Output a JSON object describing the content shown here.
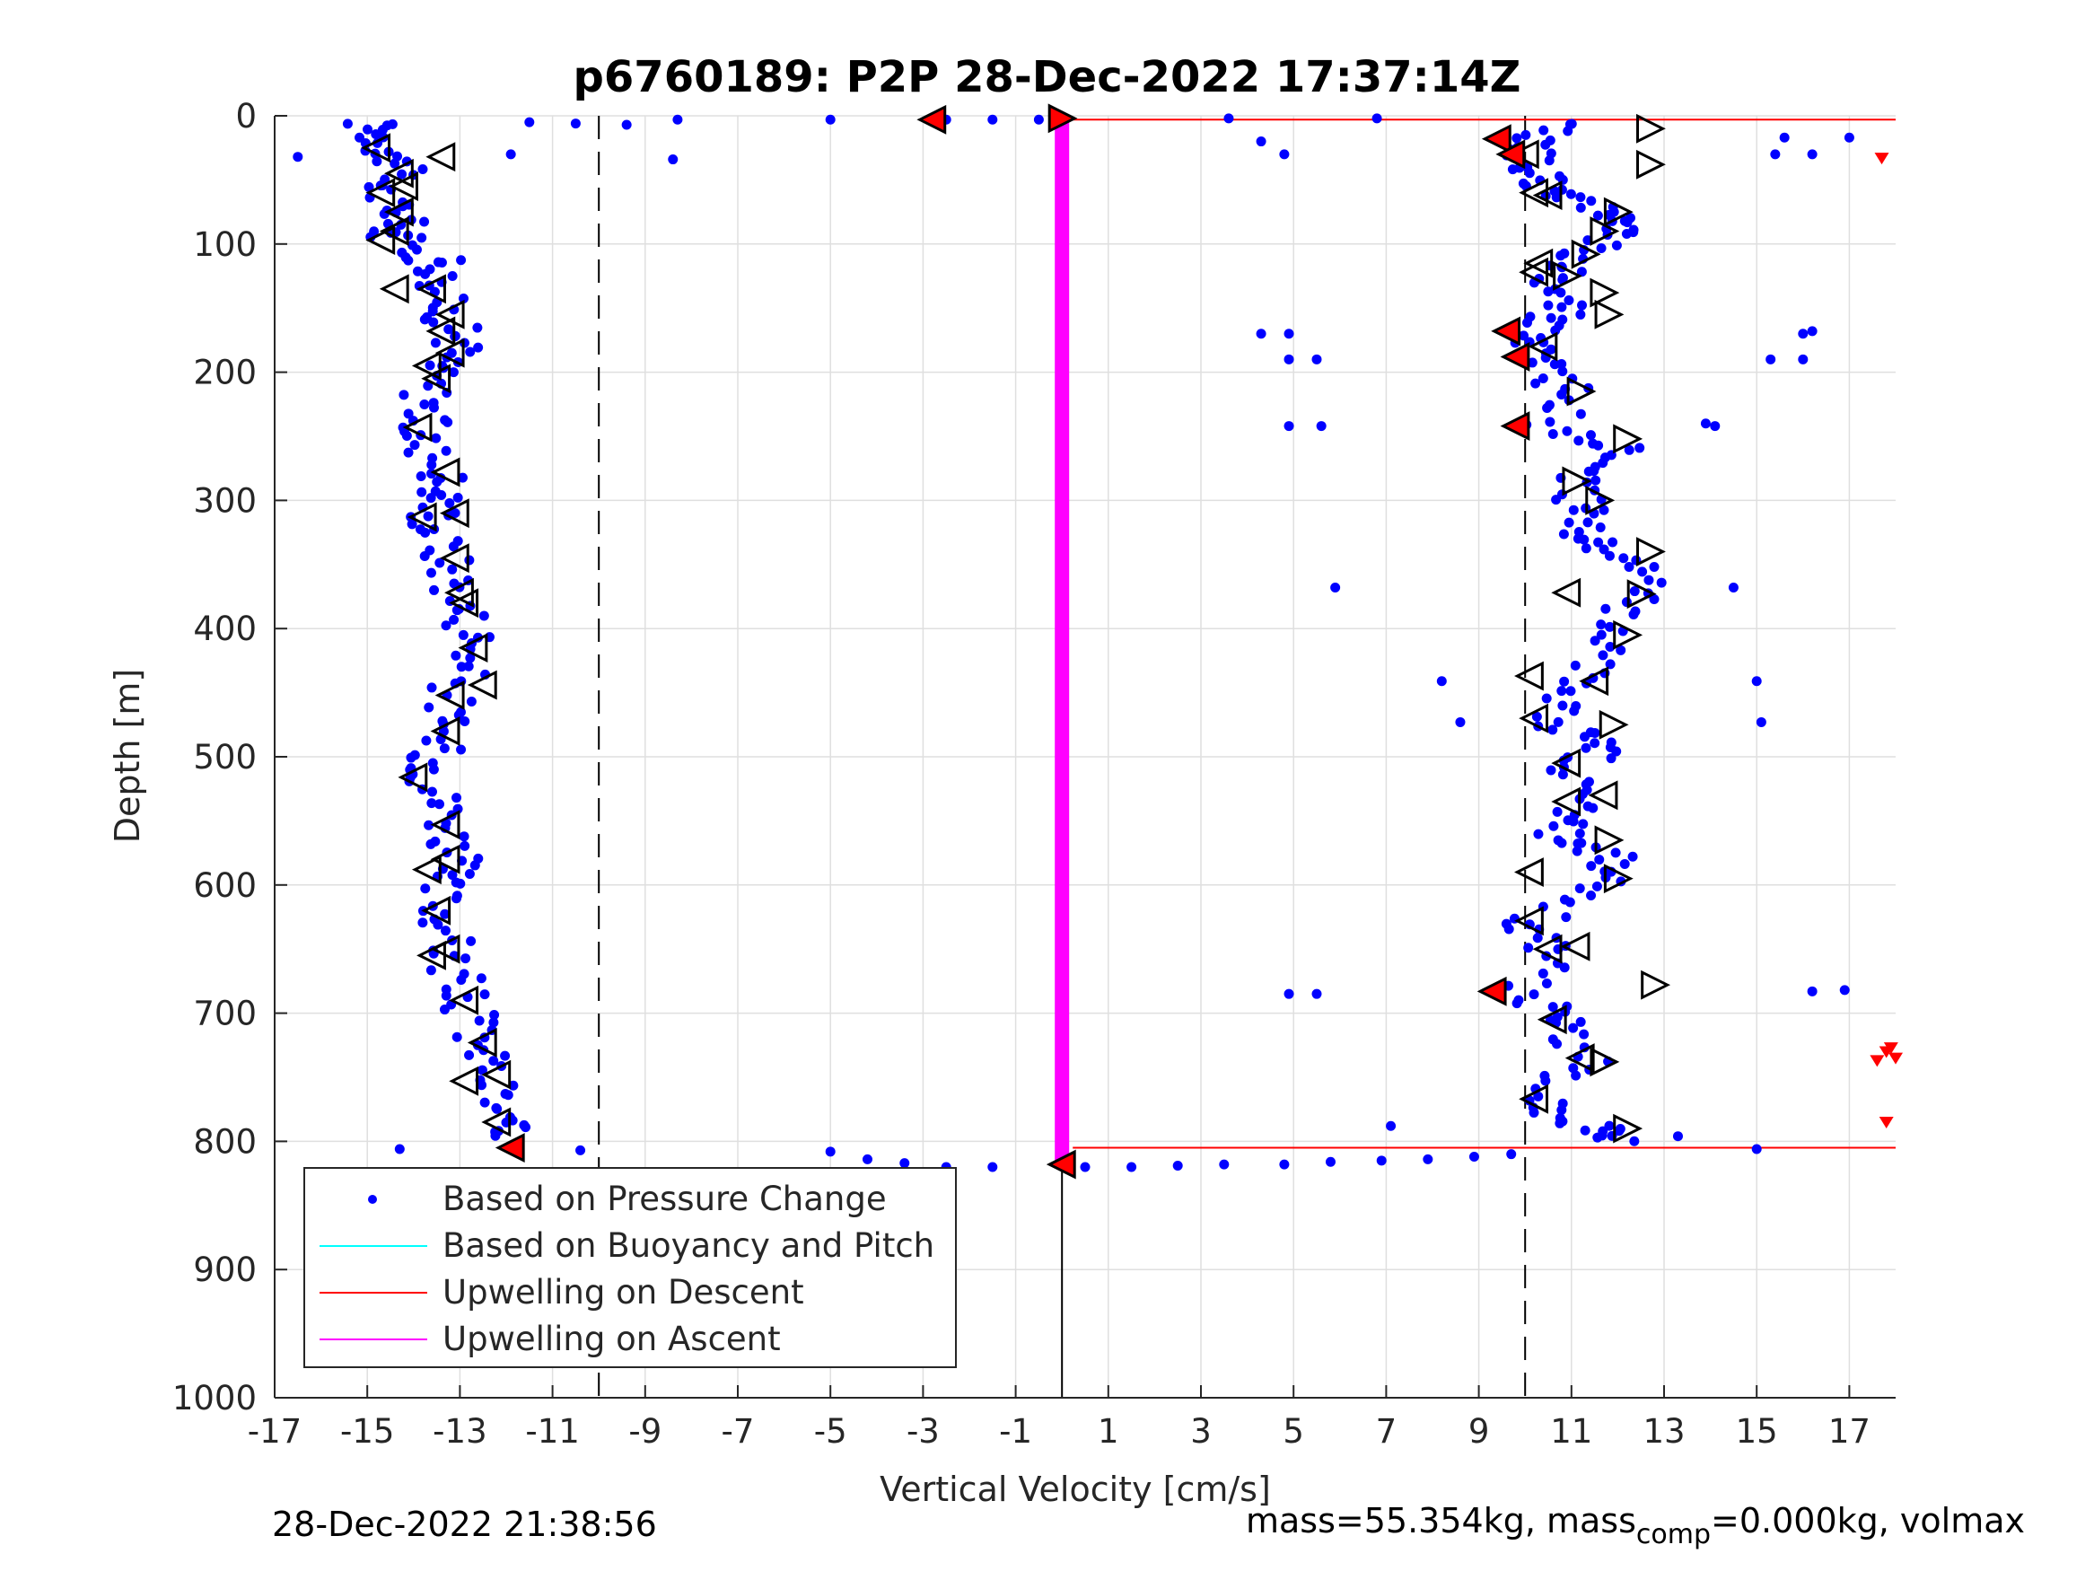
{
  "title": "p6760189: P2P 28-Dec-2022 17:37:14Z",
  "footer": {
    "timestamp": "28-Dec-2022 21:38:56",
    "mass_text": "mass=55.354kg, mass",
    "mass_sub": "comp",
    "mass_tail": "=0.000kg, volmax"
  },
  "legend": [
    {
      "label": "Based on Pressure Change",
      "color": "#0000ff",
      "style": "dot"
    },
    {
      "label": "Based on Buoyancy and Pitch",
      "color": "#00ffff",
      "style": "line"
    },
    {
      "label": "Upwelling on Descent",
      "color": "#ff0000",
      "style": "line"
    },
    {
      "label": "Upwelling on Ascent",
      "color": "#ff00ff",
      "style": "line"
    }
  ],
  "chart_data": {
    "type": "scatter",
    "title": "p6760189: P2P 28-Dec-2022 17:37:14Z",
    "xlabel": "Vertical Velocity [cm/s]",
    "ylabel": "Depth [m]",
    "xlim": [
      -17,
      18
    ],
    "ylim": [
      0,
      1000
    ],
    "y_reversed": true,
    "grid": true,
    "legend_position": "bottom-left",
    "xticks": [
      -17,
      -15,
      -13,
      -11,
      -9,
      -7,
      -5,
      -3,
      -1,
      1,
      3,
      5,
      7,
      9,
      11,
      13,
      15,
      17
    ],
    "yticks": [
      0,
      100,
      200,
      300,
      400,
      500,
      600,
      700,
      800,
      900,
      1000
    ],
    "reference_lines": {
      "dashed_x": [
        -10,
        10
      ],
      "solid_x_descent_limit": 0,
      "upwelling_descent_y": [
        3,
        805
      ],
      "upwelling_ascent_x": 0
    },
    "descent_profile": [
      {
        "x": -15.0,
        "y": 5
      },
      {
        "x": -14.6,
        "y": 20
      },
      {
        "x": -14.3,
        "y": 40
      },
      {
        "x": -14.7,
        "y": 60
      },
      {
        "x": -14.2,
        "y": 80
      },
      {
        "x": -14.5,
        "y": 95
      },
      {
        "x": -13.3,
        "y": 115
      },
      {
        "x": -13.5,
        "y": 135
      },
      {
        "x": -13.2,
        "y": 160
      },
      {
        "x": -13.0,
        "y": 180
      },
      {
        "x": -13.6,
        "y": 200
      },
      {
        "x": -13.7,
        "y": 230
      },
      {
        "x": -13.9,
        "y": 250
      },
      {
        "x": -13.3,
        "y": 280
      },
      {
        "x": -13.4,
        "y": 300
      },
      {
        "x": -13.6,
        "y": 320
      },
      {
        "x": -13.2,
        "y": 350
      },
      {
        "x": -13.0,
        "y": 380
      },
      {
        "x": -12.6,
        "y": 410
      },
      {
        "x": -13.0,
        "y": 440
      },
      {
        "x": -13.4,
        "y": 470
      },
      {
        "x": -13.5,
        "y": 500
      },
      {
        "x": -13.6,
        "y": 520
      },
      {
        "x": -13.2,
        "y": 550
      },
      {
        "x": -13.1,
        "y": 580
      },
      {
        "x": -13.5,
        "y": 600
      },
      {
        "x": -13.3,
        "y": 630
      },
      {
        "x": -13.2,
        "y": 660
      },
      {
        "x": -12.9,
        "y": 690
      },
      {
        "x": -12.6,
        "y": 720
      },
      {
        "x": -12.3,
        "y": 750
      },
      {
        "x": -12.2,
        "y": 780
      },
      {
        "x": -12.0,
        "y": 800
      }
    ],
    "ascent_profile": [
      {
        "x": 10.6,
        "y": 5
      },
      {
        "x": 10.0,
        "y": 25
      },
      {
        "x": 10.3,
        "y": 45
      },
      {
        "x": 10.6,
        "y": 60
      },
      {
        "x": 11.8,
        "y": 75
      },
      {
        "x": 12.0,
        "y": 90
      },
      {
        "x": 11.0,
        "y": 110
      },
      {
        "x": 10.5,
        "y": 130
      },
      {
        "x": 10.8,
        "y": 150
      },
      {
        "x": 10.2,
        "y": 170
      },
      {
        "x": 10.0,
        "y": 190
      },
      {
        "x": 11.0,
        "y": 215
      },
      {
        "x": 10.5,
        "y": 245
      },
      {
        "x": 12.0,
        "y": 260
      },
      {
        "x": 11.0,
        "y": 285
      },
      {
        "x": 11.4,
        "y": 310
      },
      {
        "x": 11.2,
        "y": 330
      },
      {
        "x": 12.5,
        "y": 350
      },
      {
        "x": 12.3,
        "y": 380
      },
      {
        "x": 12.0,
        "y": 410
      },
      {
        "x": 11.4,
        "y": 440
      },
      {
        "x": 10.4,
        "y": 470
      },
      {
        "x": 11.8,
        "y": 490
      },
      {
        "x": 10.9,
        "y": 510
      },
      {
        "x": 11.2,
        "y": 540
      },
      {
        "x": 10.8,
        "y": 560
      },
      {
        "x": 11.8,
        "y": 580
      },
      {
        "x": 11.9,
        "y": 600
      },
      {
        "x": 10.0,
        "y": 630
      },
      {
        "x": 10.5,
        "y": 650
      },
      {
        "x": 10.0,
        "y": 690
      },
      {
        "x": 11.0,
        "y": 710
      },
      {
        "x": 11.3,
        "y": 740
      },
      {
        "x": 10.3,
        "y": 770
      },
      {
        "x": 11.6,
        "y": 790
      },
      {
        "x": 12.0,
        "y": 800
      }
    ],
    "near_surface_points": [
      {
        "x": -11.5,
        "y": 5
      },
      {
        "x": -10.5,
        "y": 6
      },
      {
        "x": -9.4,
        "y": 7
      },
      {
        "x": -8.3,
        "y": 3
      },
      {
        "x": -8.4,
        "y": 34
      },
      {
        "x": -5.0,
        "y": 3
      },
      {
        "x": -2.5,
        "y": 3
      },
      {
        "x": -1.5,
        "y": 3
      },
      {
        "x": -0.5,
        "y": 3
      },
      {
        "x": 3.6,
        "y": 2
      },
      {
        "x": 6.8,
        "y": 2
      },
      {
        "x": 4.3,
        "y": 20
      },
      {
        "x": 4.8,
        "y": 30
      },
      {
        "x": 17.0,
        "y": 17
      },
      {
        "x": 15.6,
        "y": 17
      }
    ],
    "bottom_points": [
      {
        "x": -5.0,
        "y": 808
      },
      {
        "x": -4.2,
        "y": 814
      },
      {
        "x": -3.4,
        "y": 817
      },
      {
        "x": -2.5,
        "y": 820
      },
      {
        "x": -1.5,
        "y": 820
      },
      {
        "x": 0.5,
        "y": 820
      },
      {
        "x": 1.5,
        "y": 820
      },
      {
        "x": 2.5,
        "y": 819
      },
      {
        "x": 3.5,
        "y": 818
      },
      {
        "x": 4.8,
        "y": 818
      },
      {
        "x": 5.8,
        "y": 816
      },
      {
        "x": 6.9,
        "y": 815
      },
      {
        "x": 7.9,
        "y": 814
      },
      {
        "x": 8.9,
        "y": 812
      },
      {
        "x": 9.7,
        "y": 810
      },
      {
        "x": -10.4,
        "y": 807
      },
      {
        "x": -14.3,
        "y": 806
      }
    ],
    "outliers": [
      {
        "x": -16.5,
        "y": 32
      },
      {
        "x": -11.9,
        "y": 30
      },
      {
        "x": 4.3,
        "y": 170
      },
      {
        "x": 4.9,
        "y": 170
      },
      {
        "x": 4.9,
        "y": 190
      },
      {
        "x": 5.5,
        "y": 190
      },
      {
        "x": 4.9,
        "y": 242
      },
      {
        "x": 5.6,
        "y": 242
      },
      {
        "x": 5.9,
        "y": 368
      },
      {
        "x": 13.9,
        "y": 240
      },
      {
        "x": 14.1,
        "y": 242
      },
      {
        "x": 14.5,
        "y": 368
      },
      {
        "x": 8.2,
        "y": 441
      },
      {
        "x": 8.6,
        "y": 473
      },
      {
        "x": 15.0,
        "y": 441
      },
      {
        "x": 15.1,
        "y": 473
      },
      {
        "x": 4.9,
        "y": 685
      },
      {
        "x": 5.5,
        "y": 685
      },
      {
        "x": 16.2,
        "y": 683
      },
      {
        "x": 16.9,
        "y": 682
      },
      {
        "x": 15.3,
        "y": 190
      },
      {
        "x": 16.0,
        "y": 170
      },
      {
        "x": 16.0,
        "y": 190
      },
      {
        "x": 16.2,
        "y": 168
      },
      {
        "x": 15.4,
        "y": 30
      },
      {
        "x": 16.2,
        "y": 30
      },
      {
        "x": 7.1,
        "y": 788
      },
      {
        "x": 15.0,
        "y": 806
      },
      {
        "x": 13.3,
        "y": 796
      }
    ],
    "descent_triangles_left": [
      {
        "x": -14.8,
        "y": 25
      },
      {
        "x": -13.4,
        "y": 32
      },
      {
        "x": -14.3,
        "y": 45
      },
      {
        "x": -14.2,
        "y": 55
      },
      {
        "x": -14.7,
        "y": 60
      },
      {
        "x": -14.3,
        "y": 75
      },
      {
        "x": -14.4,
        "y": 90
      },
      {
        "x": -14.7,
        "y": 97
      },
      {
        "x": -14.4,
        "y": 135
      },
      {
        "x": -13.6,
        "y": 135
      },
      {
        "x": -13.2,
        "y": 155
      },
      {
        "x": -13.4,
        "y": 168
      },
      {
        "x": -13.2,
        "y": 185
      },
      {
        "x": -13.7,
        "y": 195
      },
      {
        "x": -13.5,
        "y": 205
      },
      {
        "x": -13.9,
        "y": 243
      },
      {
        "x": -13.3,
        "y": 278
      },
      {
        "x": -13.8,
        "y": 313
      },
      {
        "x": -13.1,
        "y": 310
      },
      {
        "x": -13.1,
        "y": 345
      },
      {
        "x": -12.9,
        "y": 380
      },
      {
        "x": -13.0,
        "y": 372
      },
      {
        "x": -12.7,
        "y": 415
      },
      {
        "x": -12.5,
        "y": 444
      },
      {
        "x": -13.2,
        "y": 452
      },
      {
        "x": -13.3,
        "y": 480
      },
      {
        "x": -14.0,
        "y": 516
      },
      {
        "x": -13.3,
        "y": 553
      },
      {
        "x": -13.7,
        "y": 588
      },
      {
        "x": -13.3,
        "y": 580
      },
      {
        "x": -13.5,
        "y": 620
      },
      {
        "x": -13.6,
        "y": 655
      },
      {
        "x": -13.3,
        "y": 650
      },
      {
        "x": -12.9,
        "y": 690
      },
      {
        "x": -12.5,
        "y": 723
      },
      {
        "x": -12.9,
        "y": 753
      },
      {
        "x": -12.2,
        "y": 748
      },
      {
        "x": -12.2,
        "y": 785
      }
    ],
    "ascent_triangles_left": [
      {
        "x": 10.0,
        "y": 30
      },
      {
        "x": 10.2,
        "y": 60
      },
      {
        "x": 10.5,
        "y": 62
      },
      {
        "x": 10.3,
        "y": 115
      },
      {
        "x": 10.2,
        "y": 122
      },
      {
        "x": 10.4,
        "y": 180
      },
      {
        "x": 10.9,
        "y": 372
      },
      {
        "x": 10.1,
        "y": 437
      },
      {
        "x": 11.5,
        "y": 441
      },
      {
        "x": 10.2,
        "y": 470
      },
      {
        "x": 10.9,
        "y": 505
      },
      {
        "x": 10.9,
        "y": 535
      },
      {
        "x": 11.7,
        "y": 530
      },
      {
        "x": 10.1,
        "y": 590
      },
      {
        "x": 10.1,
        "y": 628
      },
      {
        "x": 10.5,
        "y": 650
      },
      {
        "x": 11.1,
        "y": 648
      },
      {
        "x": 10.6,
        "y": 705
      },
      {
        "x": 11.2,
        "y": 735
      },
      {
        "x": 10.2,
        "y": 767
      }
    ],
    "ascent_triangles_right": [
      {
        "x": 12.7,
        "y": 10
      },
      {
        "x": 12.7,
        "y": 38
      },
      {
        "x": 12.0,
        "y": 75
      },
      {
        "x": 11.7,
        "y": 90
      },
      {
        "x": 11.3,
        "y": 108
      },
      {
        "x": 10.9,
        "y": 125
      },
      {
        "x": 11.7,
        "y": 138
      },
      {
        "x": 11.8,
        "y": 155
      },
      {
        "x": 11.2,
        "y": 215
      },
      {
        "x": 12.2,
        "y": 252
      },
      {
        "x": 11.1,
        "y": 285
      },
      {
        "x": 11.6,
        "y": 300
      },
      {
        "x": 12.7,
        "y": 340
      },
      {
        "x": 12.5,
        "y": 373
      },
      {
        "x": 12.2,
        "y": 405
      },
      {
        "x": 11.9,
        "y": 475
      },
      {
        "x": 11.8,
        "y": 565
      },
      {
        "x": 12.0,
        "y": 595
      },
      {
        "x": 12.8,
        "y": 678
      },
      {
        "x": 11.7,
        "y": 738
      },
      {
        "x": 12.2,
        "y": 790
      }
    ],
    "red_triangles_left": [
      {
        "x": -2.8,
        "y": 3
      },
      {
        "x": 9.4,
        "y": 18
      },
      {
        "x": 9.7,
        "y": 30
      },
      {
        "x": 9.6,
        "y": 168
      },
      {
        "x": 9.8,
        "y": 188
      },
      {
        "x": 9.8,
        "y": 242
      },
      {
        "x": 9.3,
        "y": 683
      },
      {
        "x": -11.9,
        "y": 805
      },
      {
        "x": 0.0,
        "y": 818
      }
    ],
    "red_triangles_right": [
      {
        "x": 0.0,
        "y": 2
      }
    ],
    "red_markers_edge": [
      {
        "x": 17.7,
        "y": 33
      },
      {
        "x": 17.6,
        "y": 737
      },
      {
        "x": 17.9,
        "y": 727
      },
      {
        "x": 17.8,
        "y": 730
      },
      {
        "x": 18.0,
        "y": 735
      },
      {
        "x": 17.8,
        "y": 785
      }
    ]
  }
}
